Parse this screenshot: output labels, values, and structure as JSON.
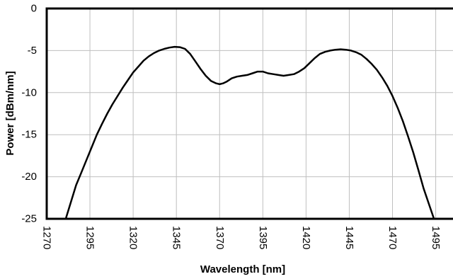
{
  "chart_data": {
    "type": "line",
    "title": "",
    "xlabel": "Wavelength [nm]",
    "ylabel": "Power [dBm/nm]",
    "xlim": [
      1270,
      1505
    ],
    "ylim": [
      -25,
      0
    ],
    "x_ticks": [
      1270,
      1295,
      1320,
      1345,
      1370,
      1395,
      1420,
      1445,
      1470,
      1495
    ],
    "y_ticks": [
      0,
      -5,
      -10,
      -15,
      -20,
      -25
    ],
    "grid": true,
    "legend": "none",
    "line_color": "#000000",
    "grid_color": "#bfbfbf",
    "series": [
      {
        "x": [
          1281,
          1284,
          1287,
          1290,
          1293,
          1296,
          1299,
          1302,
          1305,
          1308,
          1311,
          1314,
          1317,
          1320,
          1323,
          1326,
          1329,
          1332,
          1335,
          1338,
          1341,
          1344,
          1347,
          1350,
          1353,
          1356,
          1359,
          1362,
          1365,
          1368,
          1370,
          1372,
          1374,
          1377,
          1380,
          1383,
          1386,
          1389,
          1392,
          1395,
          1398,
          1401,
          1404,
          1407,
          1410,
          1413,
          1416,
          1419,
          1422,
          1425,
          1428,
          1431,
          1434,
          1437,
          1440,
          1443,
          1446,
          1449,
          1452,
          1455,
          1458,
          1461,
          1464,
          1467,
          1470,
          1473,
          1476,
          1479,
          1482,
          1485,
          1488,
          1491,
          1494
        ],
        "y": [
          -25.0,
          -23.0,
          -21.0,
          -19.5,
          -18.0,
          -16.5,
          -15.0,
          -13.7,
          -12.5,
          -11.4,
          -10.4,
          -9.4,
          -8.5,
          -7.6,
          -6.9,
          -6.2,
          -5.7,
          -5.3,
          -5.0,
          -4.8,
          -4.65,
          -4.55,
          -4.6,
          -4.8,
          -5.4,
          -6.3,
          -7.2,
          -8.0,
          -8.6,
          -8.9,
          -9.0,
          -8.9,
          -8.7,
          -8.3,
          -8.1,
          -8.0,
          -7.9,
          -7.7,
          -7.5,
          -7.5,
          -7.7,
          -7.8,
          -7.9,
          -8.0,
          -7.9,
          -7.8,
          -7.5,
          -7.1,
          -6.5,
          -5.9,
          -5.4,
          -5.15,
          -5.0,
          -4.9,
          -4.85,
          -4.9,
          -5.0,
          -5.2,
          -5.5,
          -6.0,
          -6.6,
          -7.3,
          -8.2,
          -9.2,
          -10.4,
          -11.8,
          -13.4,
          -15.2,
          -17.1,
          -19.2,
          -21.4,
          -23.2,
          -25.0
        ]
      }
    ]
  }
}
